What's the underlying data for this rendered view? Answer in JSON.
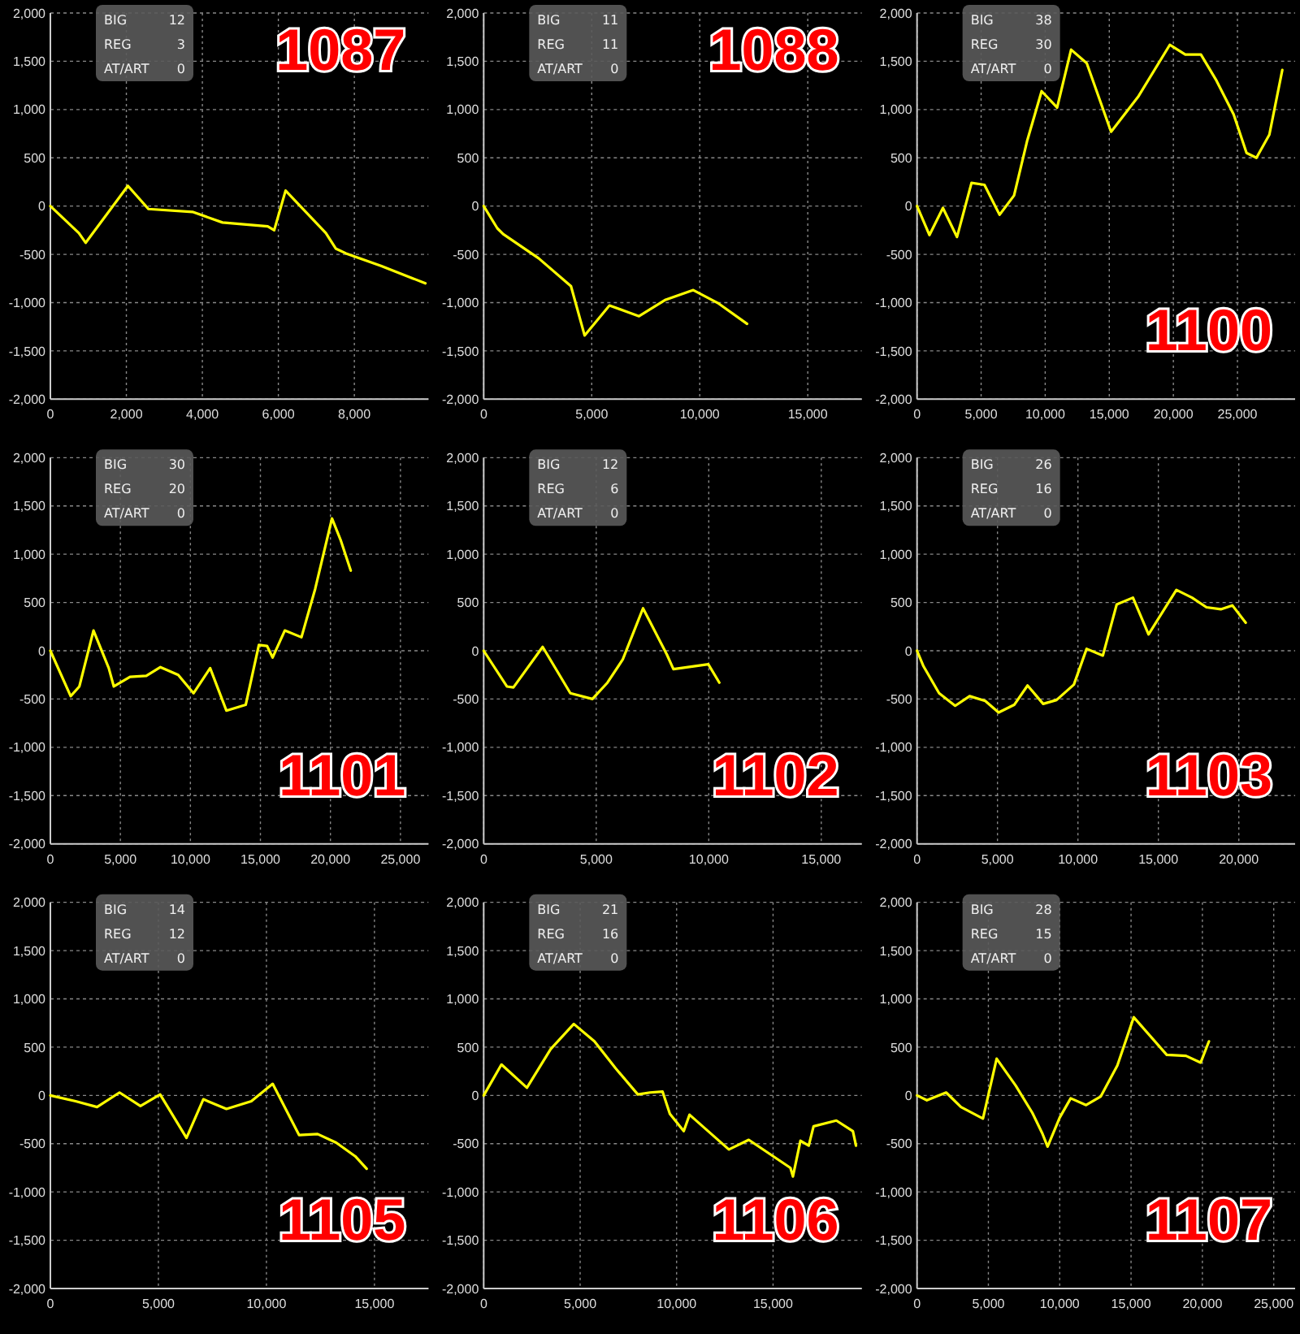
{
  "chart_data": [
    {
      "type": "line",
      "title": "1087",
      "x": [
        0,
        750,
        930,
        2040,
        2580,
        3740,
        4530,
        5720,
        5890,
        6190,
        7250,
        7510,
        7780,
        8700,
        9870
      ],
      "values": [
        0,
        -280,
        -380,
        210,
        -30,
        -60,
        -170,
        -210,
        -250,
        160,
        -280,
        -440,
        -490,
        -620,
        -800
      ],
      "color": "#ffff00",
      "xlim": [
        0,
        9950
      ],
      "xticks": [
        {
          "value": 0,
          "label": "0"
        },
        {
          "value": 2000,
          "label": "2,000"
        },
        {
          "value": 4000,
          "label": "4,000"
        },
        {
          "value": 6000,
          "label": "6,000"
        },
        {
          "value": 8000,
          "label": "8,000"
        }
      ],
      "ylim": [
        -2000,
        2000
      ],
      "yticks": [
        {
          "value": -2000,
          "label": "-2,000"
        },
        {
          "value": -1500,
          "label": "-1,500"
        },
        {
          "value": -1000,
          "label": "-1,000"
        },
        -500,
        0,
        500,
        {
          "value": 1000,
          "label": "1,000"
        },
        {
          "value": 1500,
          "label": "1,500"
        },
        {
          "value": 2000,
          "label": "2,000"
        }
      ],
      "grid": true,
      "annotations": [
        "BIG",
        "12",
        "REG",
        "3",
        "AT/ART",
        "0"
      ]
    },
    {
      "type": "line",
      "title": "1088",
      "x": [
        0,
        630,
        900,
        2540,
        4040,
        4670,
        5820,
        6700,
        7190,
        8420,
        9700,
        10880,
        12190
      ],
      "values": [
        0,
        -230,
        -290,
        -540,
        -830,
        -1340,
        -1030,
        -1100,
        -1140,
        -970,
        -870,
        -1010,
        -1220
      ],
      "color": "#ffff00",
      "xlim": [
        0,
        17500
      ],
      "xticks": [
        {
          "value": 0,
          "label": "0"
        },
        {
          "value": 5000,
          "label": "5,000"
        },
        {
          "value": 10000,
          "label": "10,000"
        },
        {
          "value": 15000,
          "label": "15,000"
        }
      ],
      "ylim": [
        -2000,
        2000
      ],
      "yticks": [
        {
          "value": -2000,
          "label": "-2,000"
        },
        {
          "value": -1500,
          "label": "-1,500"
        },
        {
          "value": -1000,
          "label": "-1,000"
        },
        -500,
        0,
        500,
        {
          "value": 1000,
          "label": "1,000"
        },
        {
          "value": 1500,
          "label": "1,500"
        },
        {
          "value": 2000,
          "label": "2,000"
        }
      ],
      "grid": true,
      "annotations": [
        "BIG",
        "11",
        "REG",
        "11",
        "AT/ART",
        "0"
      ]
    },
    {
      "type": "line",
      "title": "1100",
      "x": [
        0,
        970,
        2020,
        3120,
        4250,
        5260,
        6440,
        7570,
        8580,
        9720,
        10930,
        12020,
        13240,
        15140,
        17290,
        19720,
        20930,
        22150,
        23360,
        24700,
        25710,
        26480,
        27490,
        28500
      ],
      "values": [
        0,
        -300,
        -20,
        -320,
        240,
        220,
        -90,
        110,
        670,
        1190,
        1020,
        1620,
        1480,
        770,
        1140,
        1670,
        1570,
        1570,
        1300,
        950,
        550,
        500,
        740,
        1410
      ],
      "color": "#ffff00",
      "xlim": [
        0,
        29500
      ],
      "xticks": [
        {
          "value": 0,
          "label": "0"
        },
        {
          "value": 5000,
          "label": "5,000"
        },
        {
          "value": 10000,
          "label": "10,000"
        },
        {
          "value": 15000,
          "label": "15,000"
        },
        {
          "value": 20000,
          "label": "20,000"
        },
        {
          "value": 25000,
          "label": "25,000"
        }
      ],
      "ylim": [
        -2000,
        2000
      ],
      "yticks": [
        {
          "value": -2000,
          "label": "-2,000"
        },
        {
          "value": -1500,
          "label": "-1,500"
        },
        {
          "value": -1000,
          "label": "-1,000"
        },
        -500,
        0,
        500,
        {
          "value": 1000,
          "label": "1,000"
        },
        {
          "value": 1500,
          "label": "1,500"
        },
        {
          "value": 2000,
          "label": "2,000"
        }
      ],
      "grid": true,
      "annotations": [
        "BIG",
        "38",
        "REG",
        "30",
        "AT/ART",
        "0"
      ]
    },
    {
      "type": "line",
      "title": "1101",
      "x": [
        0,
        1450,
        2070,
        3080,
        4170,
        4530,
        5690,
        6850,
        7860,
        9130,
        10220,
        11410,
        12570,
        13950,
        14890,
        15470,
        15870,
        16740,
        17930,
        18910,
        20110,
        20720,
        21450
      ],
      "values": [
        0,
        -470,
        -370,
        210,
        -180,
        -370,
        -270,
        -260,
        -170,
        -250,
        -440,
        -180,
        -620,
        -560,
        60,
        50,
        -70,
        210,
        140,
        640,
        1370,
        1150,
        830
      ],
      "color": "#ffff00",
      "xlim": [
        0,
        27000
      ],
      "xticks": [
        {
          "value": 0,
          "label": "0"
        },
        {
          "value": 5000,
          "label": "5,000"
        },
        {
          "value": 10000,
          "label": "10,000"
        },
        {
          "value": 15000,
          "label": "15,000"
        },
        {
          "value": 20000,
          "label": "20,000"
        },
        {
          "value": 25000,
          "label": "25,000"
        }
      ],
      "ylim": [
        -2000,
        2000
      ],
      "yticks": [
        {
          "value": -2000,
          "label": "-2,000"
        },
        {
          "value": -1500,
          "label": "-1,500"
        },
        {
          "value": -1000,
          "label": "-1,000"
        },
        -500,
        0,
        500,
        {
          "value": 1000,
          "label": "1,000"
        },
        {
          "value": 1500,
          "label": "1,500"
        },
        {
          "value": 2000,
          "label": "2,000"
        }
      ],
      "grid": true,
      "annotations": [
        "BIG",
        "30",
        "REG",
        "20",
        "AT/ART",
        "0"
      ]
    },
    {
      "type": "line",
      "title": "1102",
      "x": [
        0,
        1030,
        1320,
        2620,
        3850,
        4830,
        5500,
        6180,
        7080,
        8140,
        8430,
        9980,
        10470
      ],
      "values": [
        0,
        -370,
        -380,
        40,
        -440,
        -500,
        -330,
        -90,
        440,
        -40,
        -190,
        -140,
        -330
      ],
      "color": "#ffff00",
      "xlim": [
        0,
        16800
      ],
      "xticks": [
        {
          "value": 0,
          "label": "0"
        },
        {
          "value": 5000,
          "label": "5,000"
        },
        {
          "value": 10000,
          "label": "10,000"
        },
        {
          "value": 15000,
          "label": "15,000"
        }
      ],
      "ylim": [
        -2000,
        2000
      ],
      "yticks": [
        {
          "value": -2000,
          "label": "-2,000"
        },
        {
          "value": -1500,
          "label": "-1,500"
        },
        {
          "value": -1000,
          "label": "-1,000"
        },
        -500,
        0,
        500,
        {
          "value": 1000,
          "label": "1,000"
        },
        {
          "value": 1500,
          "label": "1,500"
        },
        {
          "value": 2000,
          "label": "2,000"
        }
      ],
      "grid": true,
      "annotations": [
        "BIG",
        "12",
        "REG",
        "6",
        "AT/ART",
        "0"
      ]
    },
    {
      "type": "line",
      "title": "1103",
      "x": [
        0,
        400,
        1370,
        2370,
        3270,
        4240,
        5070,
        6040,
        6870,
        7840,
        8670,
        9750,
        10540,
        11550,
        12410,
        13420,
        14390,
        16120,
        17090,
        17990,
        18880,
        19600,
        20430
      ],
      "values": [
        0,
        -160,
        -440,
        -570,
        -470,
        -520,
        -640,
        -560,
        -360,
        -550,
        -510,
        -350,
        20,
        -50,
        480,
        550,
        170,
        630,
        550,
        450,
        430,
        470,
        290
      ],
      "color": "#ffff00",
      "xlim": [
        0,
        23500
      ],
      "xticks": [
        {
          "value": 0,
          "label": "0"
        },
        {
          "value": 5000,
          "label": "5,000"
        },
        {
          "value": 10000,
          "label": "10,000"
        },
        {
          "value": 15000,
          "label": "15,000"
        },
        {
          "value": 20000,
          "label": "20,000"
        }
      ],
      "ylim": [
        -2000,
        2000
      ],
      "yticks": [
        {
          "value": -2000,
          "label": "-2,000"
        },
        {
          "value": -1500,
          "label": "-1,500"
        },
        {
          "value": -1000,
          "label": "-1,000"
        },
        -500,
        0,
        500,
        {
          "value": 1000,
          "label": "1,000"
        },
        {
          "value": 1500,
          "label": "1,500"
        },
        {
          "value": 2000,
          "label": "2,000"
        }
      ],
      "grid": true,
      "annotations": [
        "BIG",
        "26",
        "REG",
        "16",
        "AT/ART",
        "0"
      ]
    },
    {
      "type": "line",
      "title": "1105",
      "x": [
        0,
        1170,
        2160,
        3200,
        4170,
        5080,
        6300,
        7080,
        8150,
        9300,
        10290,
        11510,
        12370,
        13230,
        14110,
        14640
      ],
      "values": [
        0,
        -60,
        -120,
        30,
        -110,
        10,
        -440,
        -40,
        -140,
        -60,
        120,
        -410,
        -400,
        -490,
        -630,
        -760
      ],
      "color": "#ffff00",
      "xlim": [
        0,
        17500
      ],
      "xticks": [
        {
          "value": 0,
          "label": "0"
        },
        {
          "value": 5000,
          "label": "5,000"
        },
        {
          "value": 10000,
          "label": "10,000"
        },
        {
          "value": 15000,
          "label": "15,000"
        }
      ],
      "ylim": [
        -2000,
        2000
      ],
      "yticks": [
        {
          "value": -2000,
          "label": "-2,000"
        },
        {
          "value": -1500,
          "label": "-1,500"
        },
        {
          "value": -1000,
          "label": "-1,000"
        },
        -500,
        0,
        500,
        {
          "value": 1000,
          "label": "1,000"
        },
        {
          "value": 1500,
          "label": "1,500"
        },
        {
          "value": 2000,
          "label": "2,000"
        }
      ],
      "grid": true,
      "annotations": [
        "BIG",
        "14",
        "REG",
        "12",
        "AT/ART",
        "0"
      ]
    },
    {
      "type": "line",
      "title": "1106",
      "x": [
        0,
        920,
        2240,
        3470,
        4670,
        5740,
        6840,
        7990,
        8620,
        9270,
        9650,
        10370,
        10670,
        12710,
        13740,
        15900,
        16030,
        16420,
        16850,
        17100,
        18280,
        19140,
        19300
      ],
      "values": [
        0,
        320,
        80,
        480,
        740,
        560,
        280,
        10,
        30,
        40,
        -190,
        -370,
        -200,
        -560,
        -460,
        -750,
        -840,
        -470,
        -520,
        -320,
        -260,
        -370,
        -520
      ],
      "color": "#ffff00",
      "xlim": [
        0,
        19600
      ],
      "xticks": [
        {
          "value": 0,
          "label": "0"
        },
        {
          "value": 5000,
          "label": "5,000"
        },
        {
          "value": 10000,
          "label": "10,000"
        },
        {
          "value": 15000,
          "label": "15,000"
        }
      ],
      "ylim": [
        -2000,
        2000
      ],
      "yticks": [
        {
          "value": -2000,
          "label": "-2,000"
        },
        {
          "value": -1500,
          "label": "-1,500"
        },
        {
          "value": -1000,
          "label": "-1,000"
        },
        -500,
        0,
        500,
        {
          "value": 1000,
          "label": "1,000"
        },
        {
          "value": 1500,
          "label": "1,500"
        },
        {
          "value": 2000,
          "label": "2,000"
        }
      ],
      "grid": true,
      "annotations": [
        "BIG",
        "21",
        "REG",
        "16",
        "AT/ART",
        "0"
      ]
    },
    {
      "type": "line",
      "title": "1107",
      "x": [
        0,
        690,
        2040,
        3080,
        4620,
        5580,
        6920,
        8080,
        8770,
        9150,
        10000,
        10770,
        11850,
        12880,
        14040,
        15190,
        17500,
        18850,
        19880,
        20460
      ],
      "values": [
        0,
        -50,
        30,
        -120,
        -240,
        380,
        100,
        -180,
        -390,
        -530,
        -230,
        -30,
        -100,
        -10,
        310,
        810,
        420,
        410,
        340,
        560
      ],
      "color": "#ffff00",
      "xlim": [
        0,
        26500
      ],
      "xticks": [
        {
          "value": 0,
          "label": "0"
        },
        {
          "value": 5000,
          "label": "5,000"
        },
        {
          "value": 10000,
          "label": "10,000"
        },
        {
          "value": 15000,
          "label": "15,000"
        },
        {
          "value": 20000,
          "label": "20,000"
        },
        {
          "value": 25000,
          "label": "25,000"
        }
      ],
      "ylim": [
        -2000,
        2000
      ],
      "yticks": [
        {
          "value": -2000,
          "label": "-2,000"
        },
        {
          "value": -1500,
          "label": "-1,500"
        },
        {
          "value": -1000,
          "label": "-1,000"
        },
        -500,
        0,
        500,
        {
          "value": 1000,
          "label": "1,000"
        },
        {
          "value": 1500,
          "label": "1,500"
        },
        {
          "value": 2000,
          "label": "2,000"
        }
      ],
      "grid": true,
      "annotations": [
        "BIG",
        "28",
        "REG",
        "15",
        "AT/ART",
        "0"
      ]
    }
  ]
}
